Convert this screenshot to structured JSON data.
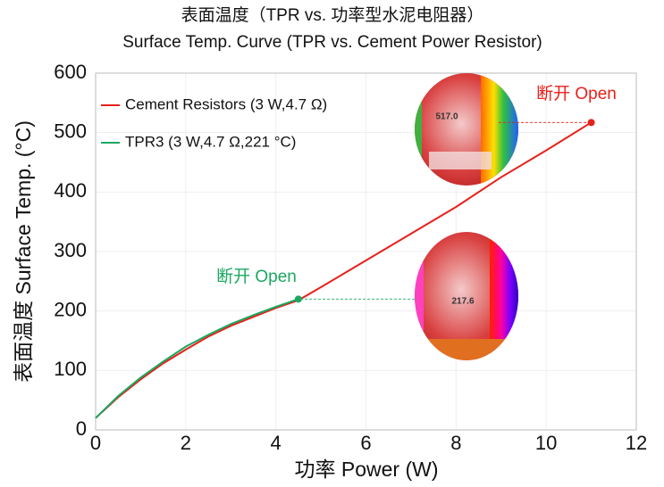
{
  "chart_data": {
    "type": "line",
    "title": "表面温度（TPR vs. 功率型水泥电阻器）",
    "subtitle": "Surface Temp. Curve (TPR vs. Cement Power Resistor)",
    "x_label": "功率 Power (W)",
    "y_label": "表面温度 Surface Temp. (°C)",
    "xlim": [
      0,
      12
    ],
    "ylim": [
      0,
      600
    ],
    "xticks": [
      0,
      2,
      4,
      6,
      8,
      10,
      12
    ],
    "yticks": [
      0,
      100,
      200,
      300,
      400,
      500,
      600
    ],
    "grid": true,
    "legend": "upper left",
    "series": [
      {
        "name": "Cement  Resistors (3 W,4.7 Ω)",
        "color": "#e8201a",
        "x": [
          0,
          0.5,
          1,
          1.5,
          2,
          2.5,
          3,
          3.5,
          4,
          4.5,
          5,
          6,
          7,
          8,
          9,
          10,
          11
        ],
        "values": [
          20,
          55,
          85,
          112,
          135,
          157,
          175,
          190,
          205,
          218,
          240,
          285,
          330,
          375,
          425,
          470,
          517
        ]
      },
      {
        "name": "TPR3 (3 W,4.7 Ω,221 °C)",
        "color": "#1aa860",
        "x": [
          0,
          0.5,
          1,
          1.5,
          2,
          2.5,
          3,
          3.5,
          4,
          4.5
        ],
        "values": [
          20,
          57,
          88,
          115,
          140,
          160,
          178,
          193,
          207,
          220
        ]
      }
    ],
    "annotations": [
      {
        "text": "断开 Open",
        "color": "#e8201a"
      },
      {
        "text": "断开 Open",
        "color": "#1aa860"
      },
      {
        "text": "517.0",
        "color": "#333333"
      },
      {
        "text": "217.6",
        "color": "#333333"
      }
    ]
  }
}
